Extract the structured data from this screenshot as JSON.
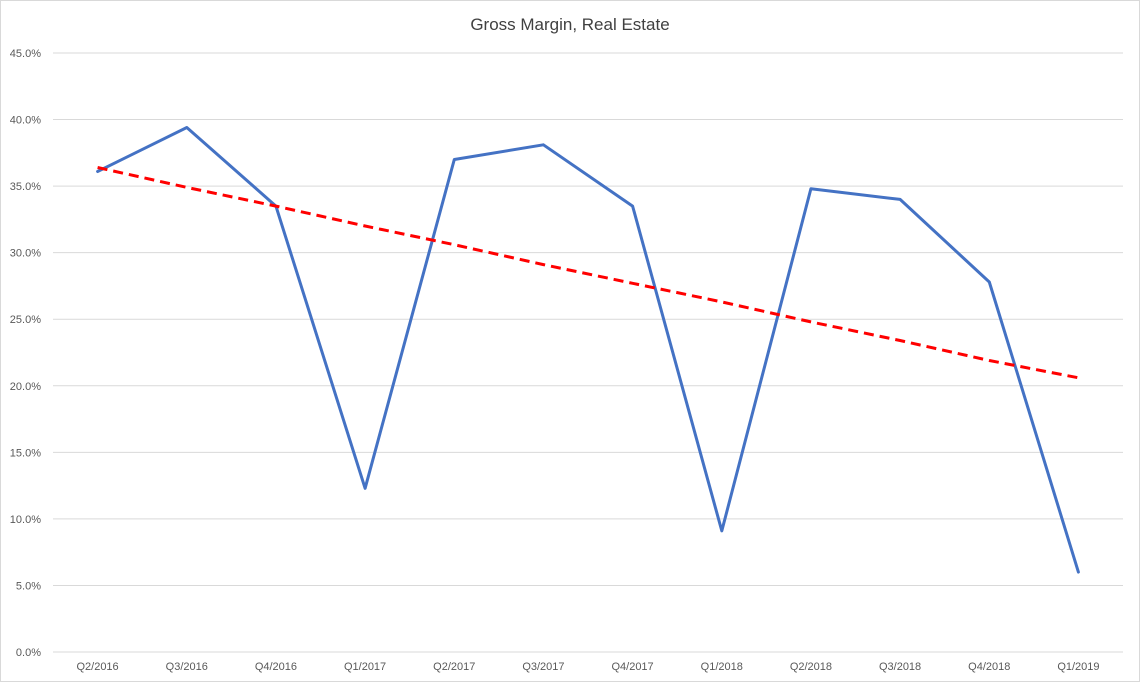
{
  "chart_data": {
    "type": "line",
    "title": "Gross Margin, Real Estate",
    "xlabel": "",
    "ylabel": "",
    "categories": [
      "Q2/2016",
      "Q3/2016",
      "Q4/2016",
      "Q1/2017",
      "Q2/2017",
      "Q3/2017",
      "Q4/2017",
      "Q1/2018",
      "Q2/2018",
      "Q3/2018",
      "Q4/2018",
      "Q1/2019"
    ],
    "series": [
      {
        "values": [
          36.1,
          39.4,
          33.5,
          12.3,
          37.0,
          38.1,
          33.5,
          9.1,
          34.8,
          34.0,
          27.8,
          6.0
        ],
        "color": "#4472C4",
        "style": "solid"
      },
      {
        "values": [
          36.4,
          34.9,
          33.5,
          32.0,
          30.6,
          29.1,
          27.7,
          26.3,
          24.8,
          23.4,
          21.9,
          20.6
        ],
        "color": "#FF0000",
        "style": "dashed"
      }
    ],
    "ylim": [
      0,
      45
    ],
    "yticks": [
      "0.0%",
      "5.0%",
      "10.0%",
      "15.0%",
      "20.0%",
      "25.0%",
      "30.0%",
      "35.0%",
      "40.0%",
      "45.0%"
    ],
    "grid": true,
    "legend": "none"
  }
}
